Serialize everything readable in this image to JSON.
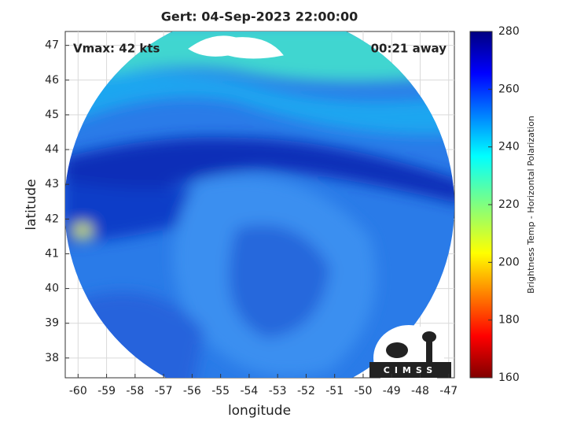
{
  "chart_data": {
    "type": "map",
    "title": "Gert: 04-Sep-2023 22:00:00",
    "annotations": [
      "Vmax: 42 kts",
      "00:21 away"
    ],
    "x_label": "longitude",
    "y_label": "latitude",
    "xlim": [
      -60.45,
      -46.8
    ],
    "xticks": [
      -60,
      -59,
      -58,
      -57,
      -56,
      -55,
      -54,
      -53,
      -52,
      -51,
      -50,
      -49,
      -48,
      -47
    ],
    "ylim": [
      37.43,
      47.4
    ],
    "yticks": [
      38,
      39,
      40,
      41,
      42,
      43,
      44,
      45,
      46,
      47
    ],
    "grid": true,
    "colorbar": {
      "label": "Brightness Temp - Horizontal Polarization",
      "lim": [
        160,
        280
      ],
      "ticks": [
        160,
        180,
        200,
        220,
        240,
        260,
        280
      ]
    },
    "logo_text": "CIMSS"
  }
}
